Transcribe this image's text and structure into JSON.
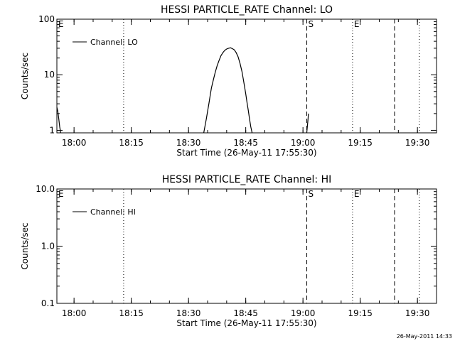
{
  "footer_timestamp": "26-May-2011 14:33",
  "chart_data": [
    {
      "type": "line",
      "title": "HESSI PARTICLE_RATE Channel: LO",
      "xlabel": "Start Time (26-May-11 17:55:30)",
      "ylabel": "Counts/sec",
      "yscale": "log",
      "xlim": [
        "17:55:30",
        "19:35:00"
      ],
      "ylim": [
        0.9,
        100
      ],
      "x_ticks": [
        "18:00",
        "18:15",
        "18:30",
        "18:45",
        "19:00",
        "19:15",
        "19:30"
      ],
      "y_ticks": [
        {
          "value": 1,
          "label": "1"
        },
        {
          "value": 10,
          "label": "10"
        },
        {
          "value": 100,
          "label": "100"
        }
      ],
      "legend": {
        "label": "Channel: LO",
        "placement": "top-left"
      },
      "markers": [
        {
          "time": "17:55:30",
          "label": "E",
          "style": "dotted"
        },
        {
          "time": "18:13:00",
          "label": "",
          "style": "dotted"
        },
        {
          "time": "19:01:00",
          "label": "S",
          "style": "dashed"
        },
        {
          "time": "19:13:00",
          "label": "E",
          "style": "dotted"
        },
        {
          "time": "19:24:00",
          "label": "",
          "style": "dashed"
        },
        {
          "time": "19:30:30",
          "label": "",
          "style": "dotted"
        }
      ],
      "series": [
        {
          "segments": [
            [
              [
                "17:55:30",
                2.6
              ],
              [
                "17:55:45",
                2.2
              ],
              [
                "17:56:00",
                1.6
              ],
              [
                "17:56:15",
                1.15
              ],
              [
                "17:56:30",
                0.9
              ]
            ],
            [
              [
                "18:34:00",
                0.9
              ],
              [
                "18:34:20",
                1.2
              ],
              [
                "18:34:40",
                1.6
              ],
              [
                "18:35:00",
                2.2
              ],
              [
                "18:35:20",
                3.0
              ],
              [
                "18:35:40",
                4.2
              ],
              [
                "18:36:00",
                5.8
              ],
              [
                "18:36:30",
                8.0
              ],
              [
                "18:37:00",
                11.0
              ],
              [
                "18:37:30",
                14.5
              ],
              [
                "18:38:00",
                18.0
              ],
              [
                "18:38:30",
                22.0
              ],
              [
                "18:39:00",
                25.0
              ],
              [
                "18:39:30",
                27.5
              ],
              [
                "18:40:00",
                29.0
              ],
              [
                "18:40:30",
                30.0
              ],
              [
                "18:41:00",
                30.5
              ],
              [
                "18:41:30",
                29.5
              ],
              [
                "18:42:00",
                28.0
              ],
              [
                "18:42:30",
                25.0
              ],
              [
                "18:43:00",
                21.0
              ],
              [
                "18:43:30",
                16.0
              ],
              [
                "18:44:00",
                11.5
              ],
              [
                "18:44:20",
                8.5
              ],
              [
                "18:44:40",
                6.2
              ],
              [
                "18:45:00",
                4.5
              ],
              [
                "18:45:20",
                3.2
              ],
              [
                "18:45:40",
                2.3
              ],
              [
                "18:46:00",
                1.6
              ],
              [
                "18:46:20",
                1.15
              ],
              [
                "18:46:40",
                0.9
              ]
            ],
            [
              [
                "19:01:00",
                0.9
              ],
              [
                "19:01:10",
                1.2
              ],
              [
                "19:01:20",
                1.6
              ],
              [
                "19:01:25",
                2.0
              ]
            ]
          ]
        }
      ]
    },
    {
      "type": "line",
      "title": "HESSI PARTICLE_RATE Channel: HI",
      "xlabel": "Start Time (26-May-11 17:55:30)",
      "ylabel": "Counts/sec",
      "yscale": "log",
      "xlim": [
        "17:55:30",
        "19:35:00"
      ],
      "ylim": [
        0.1,
        10
      ],
      "x_ticks": [
        "18:00",
        "18:15",
        "18:30",
        "18:45",
        "19:00",
        "19:15",
        "19:30"
      ],
      "y_ticks": [
        {
          "value": 0.1,
          "label": "0.1"
        },
        {
          "value": 1,
          "label": "1.0"
        },
        {
          "value": 10,
          "label": "10.0"
        }
      ],
      "legend": {
        "label": "Channel: HI",
        "placement": "top-left"
      },
      "markers": [
        {
          "time": "17:55:30",
          "label": "E",
          "style": "dotted"
        },
        {
          "time": "18:13:00",
          "label": "",
          "style": "dotted"
        },
        {
          "time": "19:01:00",
          "label": "S",
          "style": "dashed"
        },
        {
          "time": "19:13:00",
          "label": "E",
          "style": "dotted"
        },
        {
          "time": "19:24:00",
          "label": "",
          "style": "dashed"
        },
        {
          "time": "19:30:30",
          "label": "",
          "style": "dotted"
        }
      ],
      "series": [
        {
          "segments": []
        }
      ]
    }
  ]
}
